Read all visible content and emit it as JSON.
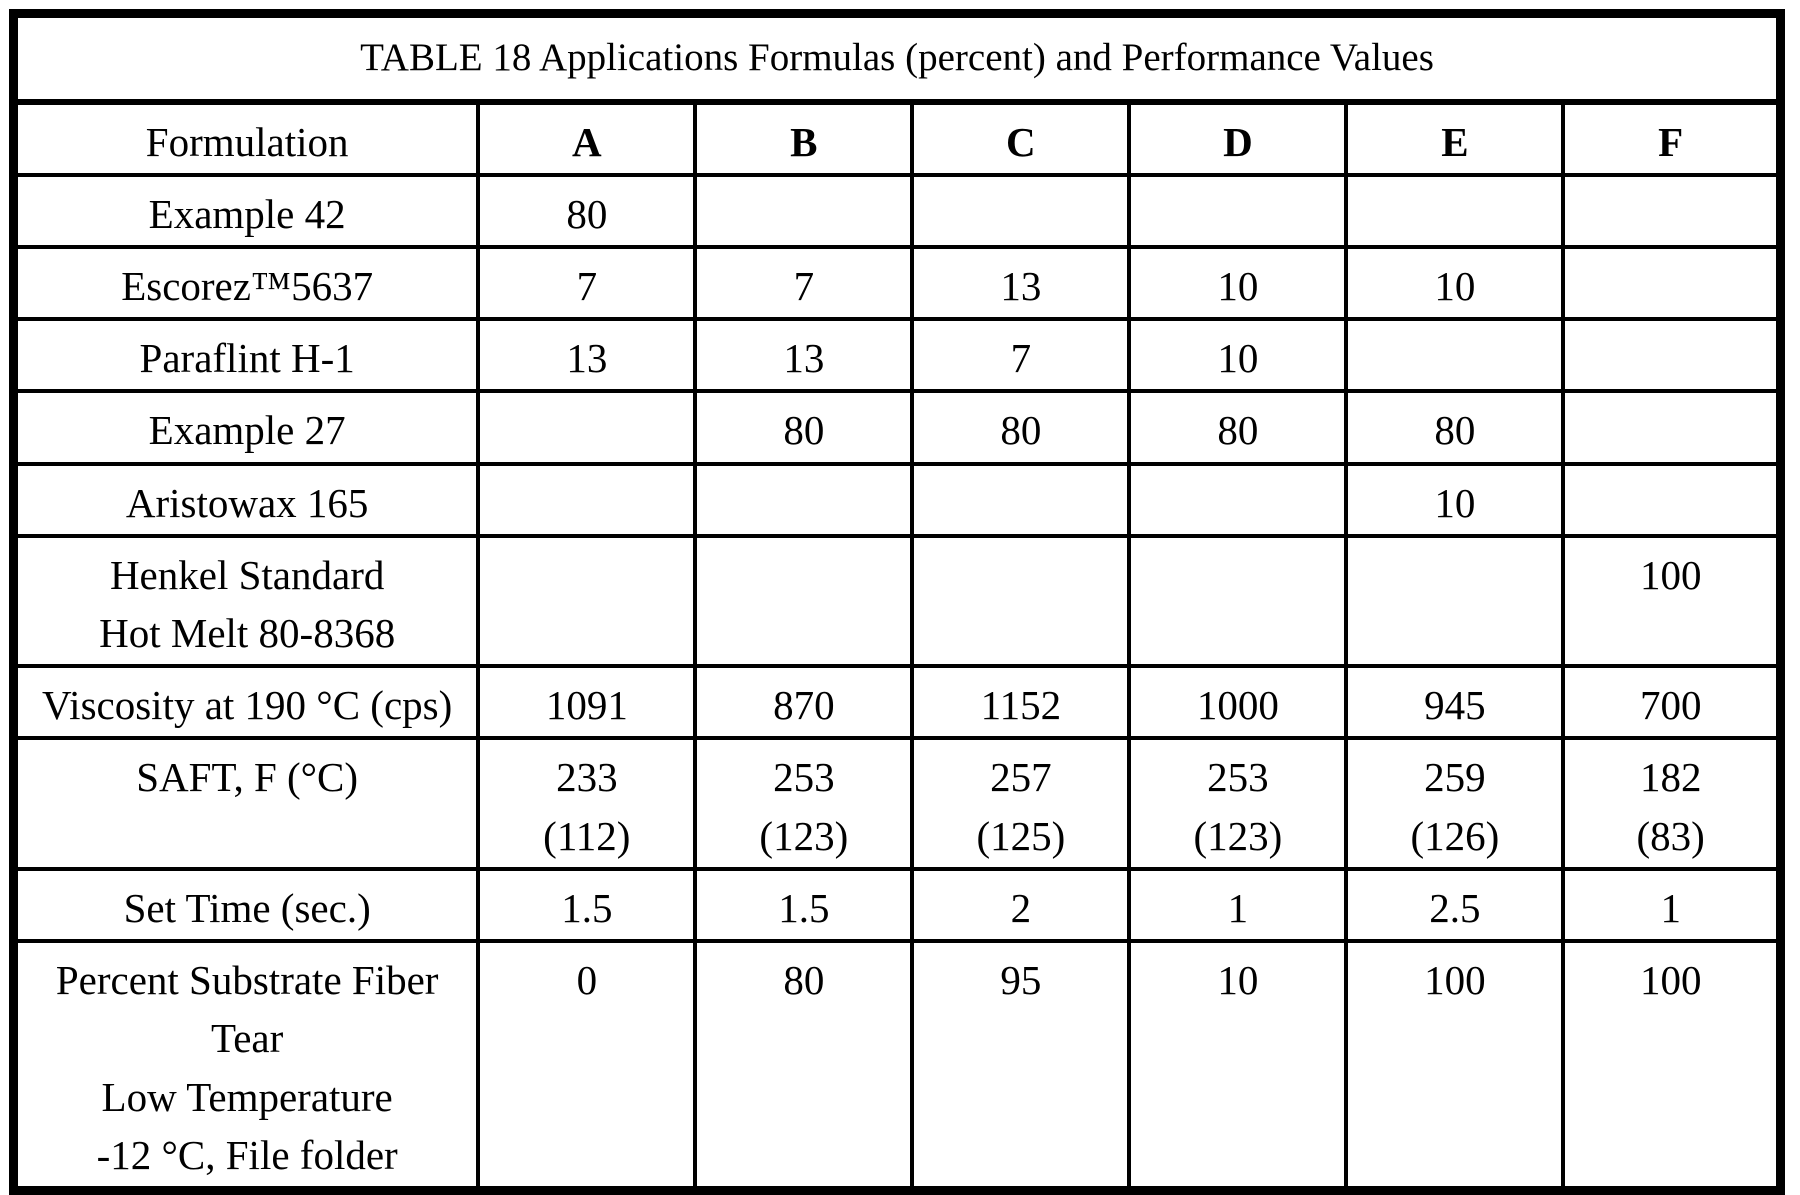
{
  "title": "TABLE 18 Applications Formulas (percent) and Performance Values",
  "table": {
    "columns": [
      "Formulation",
      "A",
      "B",
      "C",
      "D",
      "E",
      "F"
    ],
    "rows": [
      {
        "label": "Example 42",
        "values": [
          "80",
          "",
          "",
          "",
          "",
          ""
        ]
      },
      {
        "label": "Escorez™5637",
        "values": [
          "7",
          "7",
          "13",
          "10",
          "10",
          ""
        ]
      },
      {
        "label": "Paraflint H-1",
        "values": [
          "13",
          "13",
          "7",
          "10",
          "",
          ""
        ]
      },
      {
        "label": "Example 27",
        "values": [
          "",
          "80",
          "80",
          "80",
          "80",
          ""
        ]
      },
      {
        "label": "Aristowax 165",
        "values": [
          "",
          "",
          "",
          "",
          "10",
          ""
        ]
      },
      {
        "label": "Henkel Standard\nHot Melt 80-8368",
        "values": [
          "",
          "",
          "",
          "",
          "",
          "100"
        ]
      },
      {
        "label": "Viscosity at 190 °C (cps)",
        "values": [
          "1091",
          "870",
          "1152",
          "1000",
          "945",
          "700"
        ]
      },
      {
        "label": "SAFT, F (°C)",
        "values": [
          "233\n(112)",
          "253\n(123)",
          "257\n(125)",
          "253\n(123)",
          "259\n(126)",
          "182\n(83)"
        ]
      },
      {
        "label": "Set Time (sec.)",
        "values": [
          "1.5",
          "1.5",
          "2",
          "1",
          "2.5",
          "1"
        ]
      },
      {
        "label": "Percent Substrate Fiber\nTear\nLow Temperature\n-12 °C, File folder",
        "values": [
          "0",
          "80",
          "95",
          "10",
          "100",
          "100"
        ]
      }
    ]
  }
}
